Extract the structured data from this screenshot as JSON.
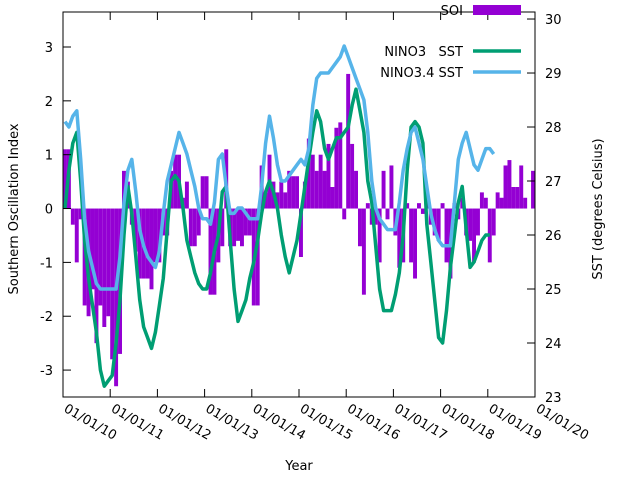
{
  "chart_data": {
    "type": "bar-line",
    "xlabel": "Year",
    "ylabel": "Southern Oscillation Index",
    "y2label": "SST (degrees Celsius)",
    "x": [
      "01/01/10",
      "01/02/10",
      "01/03/10",
      "01/04/10",
      "01/05/10",
      "01/06/10",
      "01/07/10",
      "01/08/10",
      "01/09/10",
      "01/10/10",
      "01/11/10",
      "01/12/10",
      "01/01/11",
      "01/02/11",
      "01/03/11",
      "01/04/11",
      "01/05/11",
      "01/06/11",
      "01/07/11",
      "01/08/11",
      "01/09/11",
      "01/10/11",
      "01/11/11",
      "01/12/11",
      "01/01/12",
      "01/02/12",
      "01/03/12",
      "01/04/12",
      "01/05/12",
      "01/06/12",
      "01/07/12",
      "01/08/12",
      "01/09/12",
      "01/10/12",
      "01/11/12",
      "01/12/12",
      "01/01/13",
      "01/02/13",
      "01/03/13",
      "01/04/13",
      "01/05/13",
      "01/06/13",
      "01/07/13",
      "01/08/13",
      "01/09/13",
      "01/10/13",
      "01/11/13",
      "01/12/13",
      "01/01/14",
      "01/02/14",
      "01/03/14",
      "01/04/14",
      "01/05/14",
      "01/06/14",
      "01/07/14",
      "01/08/14",
      "01/09/14",
      "01/10/14",
      "01/11/14",
      "01/12/14",
      "01/01/15",
      "01/02/15",
      "01/03/15",
      "01/04/15",
      "01/05/15",
      "01/06/15",
      "01/07/15",
      "01/08/15",
      "01/09/15",
      "01/10/15",
      "01/11/15",
      "01/12/15",
      "01/01/16",
      "01/02/16",
      "01/03/16",
      "01/04/16",
      "01/05/16",
      "01/06/16",
      "01/07/16",
      "01/08/16",
      "01/09/16",
      "01/10/16",
      "01/11/16",
      "01/12/16",
      "01/01/17",
      "01/02/17",
      "01/03/17",
      "01/04/17",
      "01/05/17",
      "01/06/17",
      "01/07/17",
      "01/08/17",
      "01/09/17",
      "01/10/17",
      "01/11/17",
      "01/12/17",
      "01/01/18",
      "01/02/18",
      "01/03/18",
      "01/04/18",
      "01/05/18",
      "01/06/18",
      "01/07/18",
      "01/08/18",
      "01/09/18",
      "01/10/18",
      "01/11/18",
      "01/12/18",
      "01/01/19",
      "01/02/19",
      "01/03/19",
      "01/04/19",
      "01/05/19",
      "01/06/19",
      "01/07/19",
      "01/08/19",
      "01/09/19",
      "01/10/19",
      "01/11/19",
      "01/12/19"
    ],
    "series": [
      {
        "name": "SOI",
        "kind": "bar",
        "color": "#9400d3",
        "values": [
          1.1,
          1.1,
          -0.3,
          -1.0,
          -0.2,
          -1.8,
          -2.0,
          -1.5,
          -2.5,
          -1.8,
          -2.2,
          -2.0,
          -2.8,
          -3.3,
          -2.7,
          0.7,
          0.5,
          -0.3,
          -0.8,
          -1.3,
          -1.3,
          -1.3,
          -1.5,
          -1.0,
          -1.0,
          -0.5,
          -0.5,
          0.7,
          1.0,
          1.0,
          0.2,
          0.5,
          -0.7,
          -0.7,
          -0.5,
          0.6,
          0.6,
          -1.6,
          -1.6,
          -1.0,
          -0.7,
          1.1,
          -0.7,
          -0.7,
          -0.6,
          -0.7,
          -0.5,
          -0.5,
          -1.8,
          -1.8,
          0.8,
          0.3,
          1.0,
          0.5,
          0.3,
          0.5,
          0.3,
          0.7,
          0.6,
          0.6,
          -0.9,
          0.5,
          1.3,
          1.0,
          0.7,
          1.0,
          0.7,
          1.2,
          0.4,
          1.5,
          1.6,
          -0.2,
          2.5,
          1.2,
          0.7,
          -0.7,
          -1.6,
          0.1,
          -0.3,
          -0.3,
          -1.0,
          0.7,
          -0.2,
          0.8,
          -0.5,
          -1.1,
          -1.0,
          0.1,
          -1.0,
          -1.3,
          0.1,
          -0.1,
          0.2,
          -0.3,
          -0.5,
          -0.6,
          0.1,
          -1.0,
          -1.3,
          0.1,
          -0.2,
          0.2,
          -0.5,
          -0.6,
          -1.0,
          -0.5,
          0.3,
          0.2,
          -1.0,
          -0.5,
          0.3,
          0.2,
          0.8,
          0.9,
          0.4,
          0.4,
          0.8,
          0.2,
          0.0,
          0.7
        ]
      },
      {
        "name": "NINO3   SST",
        "kind": "line",
        "axis": "y2",
        "color": "#009e73",
        "values": [
          26.5,
          27.2,
          27.7,
          27.9,
          27.0,
          25.9,
          25.2,
          24.7,
          24.2,
          23.5,
          23.2,
          23.3,
          23.4,
          24.0,
          24.8,
          26.0,
          26.9,
          26.4,
          25.6,
          24.8,
          24.3,
          24.1,
          23.9,
          24.2,
          24.7,
          25.2,
          26.1,
          27.0,
          27.1,
          27.0,
          26.5,
          25.9,
          25.6,
          25.3,
          25.1,
          25.0,
          25.0,
          25.3,
          25.7,
          26.0,
          26.8,
          26.9,
          25.9,
          25.0,
          24.4,
          24.6,
          24.8,
          25.2,
          25.5,
          25.9,
          26.4,
          26.8,
          27.0,
          26.8,
          26.5,
          26.0,
          25.6,
          25.3,
          25.6,
          25.9,
          26.4,
          26.9,
          27.4,
          27.9,
          28.3,
          28.1,
          27.6,
          27.4,
          27.6,
          27.8,
          27.8,
          27.9,
          28.0,
          28.4,
          28.7,
          28.3,
          27.9,
          27.0,
          26.6,
          25.8,
          25.0,
          24.6,
          24.6,
          24.6,
          24.9,
          25.3,
          26.0,
          27.2,
          28.0,
          28.1,
          28.0,
          27.7,
          26.2,
          25.5,
          24.8,
          24.1,
          24.0,
          24.6,
          25.4,
          26.0,
          26.6,
          26.9,
          26.1,
          25.4,
          25.5,
          25.7,
          25.9,
          26.0,
          26.0,
          null,
          null,
          null,
          null,
          null,
          null,
          null,
          null,
          null,
          null,
          null
        ]
      },
      {
        "name": "NINO3.4 SST",
        "kind": "line",
        "axis": "y2",
        "color": "#56b4e9",
        "values": [
          28.1,
          28.0,
          28.2,
          28.3,
          27.4,
          26.3,
          25.7,
          25.4,
          25.1,
          25.0,
          25.0,
          25.0,
          25.0,
          25.0,
          25.6,
          26.6,
          27.2,
          27.4,
          26.8,
          26.1,
          25.8,
          25.6,
          25.5,
          25.4,
          25.7,
          26.4,
          27.0,
          27.3,
          27.6,
          27.9,
          27.7,
          27.5,
          27.2,
          26.9,
          26.5,
          26.3,
          26.3,
          26.2,
          26.6,
          27.4,
          27.5,
          26.9,
          26.4,
          26.4,
          26.5,
          26.5,
          26.4,
          26.3,
          26.3,
          26.3,
          26.9,
          27.7,
          28.2,
          27.8,
          27.3,
          27.0,
          27.0,
          27.1,
          27.2,
          27.3,
          27.4,
          27.3,
          27.6,
          28.4,
          28.9,
          29.0,
          29.0,
          29.0,
          29.1,
          29.2,
          29.3,
          29.5,
          29.3,
          29.1,
          28.9,
          28.7,
          28.5,
          27.9,
          27.0,
          26.5,
          26.3,
          26.2,
          26.1,
          26.1,
          26.1,
          26.6,
          27.2,
          27.6,
          27.9,
          28.0,
          27.7,
          27.4,
          26.9,
          26.4,
          26.1,
          25.9,
          25.8,
          25.8,
          25.8,
          26.6,
          27.4,
          27.7,
          27.9,
          27.6,
          27.3,
          27.2,
          27.4,
          27.6,
          27.6,
          27.5,
          null,
          null,
          null,
          null,
          null,
          null,
          null,
          null,
          null,
          null
        ]
      }
    ],
    "xlim": [
      "01/01/10",
      "01/01/20"
    ],
    "xticks": [
      "01/01/10",
      "01/01/11",
      "01/01/12",
      "01/01/13",
      "01/01/14",
      "01/01/15",
      "01/01/16",
      "01/01/17",
      "01/01/18",
      "01/01/19",
      "01/01/20"
    ],
    "ylim": [
      -3.5,
      3.65
    ],
    "yticks": [
      -3,
      -2,
      -1,
      0,
      1,
      2,
      3
    ],
    "y2lim": [
      23,
      30.13
    ],
    "y2ticks": [
      23,
      24,
      25,
      26,
      27,
      28,
      29,
      30
    ],
    "legend": "top-right"
  }
}
